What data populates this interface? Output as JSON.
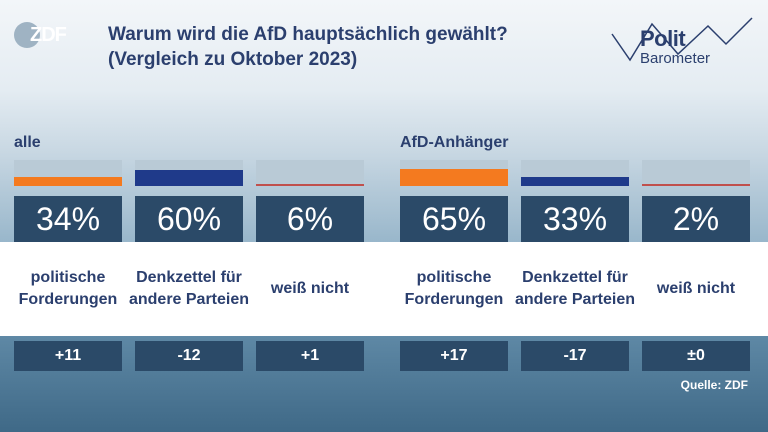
{
  "logo": {
    "text": "ZDF"
  },
  "title": "Warum wird die AfD hauptsächlich gewählt? (Vergleich zu Oktober 2023)",
  "brand": {
    "line1": "Polit",
    "line2": "Barometer"
  },
  "source": "Quelle: ZDF",
  "colors": {
    "orange": "#f47a1f",
    "navy": "#1f3a8a",
    "red": "#c0504d",
    "box": "#2b4a68",
    "text": "#2b3f6e"
  },
  "chart_data": {
    "type": "bar",
    "groups": [
      {
        "label": "alle",
        "items": [
          {
            "category": "politische Forderungen",
            "value": 34,
            "display": "34%",
            "change": "+11",
            "color": "orange"
          },
          {
            "category": "Denkzettel für andere Parteien",
            "value": 60,
            "display": "60%",
            "change": "-12",
            "color": "navy"
          },
          {
            "category": "weiß nicht",
            "value": 6,
            "display": "6%",
            "change": "+1",
            "color": "red"
          }
        ]
      },
      {
        "label": "AfD-Anhänger",
        "items": [
          {
            "category": "politische Forderungen",
            "value": 65,
            "display": "65%",
            "change": "+17",
            "color": "orange"
          },
          {
            "category": "Denkzettel für andere Parteien",
            "value": 33,
            "display": "33%",
            "change": "-17",
            "color": "navy"
          },
          {
            "category": "weiß nicht",
            "value": 2,
            "display": "2%",
            "change": "±0",
            "color": "red"
          }
        ]
      }
    ],
    "ylim": [
      0,
      100
    ]
  }
}
